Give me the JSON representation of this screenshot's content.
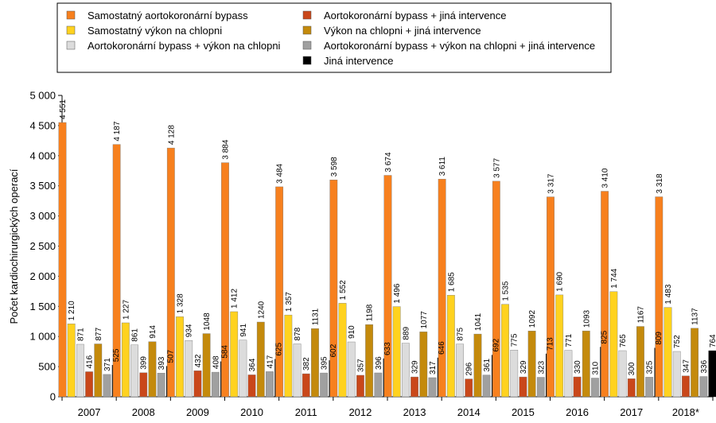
{
  "chart_data": {
    "type": "bar",
    "title": "",
    "xlabel": "",
    "ylabel": "Počet kardiochirurgických operací",
    "ylim": [
      0,
      5000
    ],
    "yticks": [
      "0",
      "500",
      "1 000",
      "1 500",
      "2 000",
      "2 500",
      "3 000",
      "3 500",
      "4 000",
      "4 500",
      "5 000"
    ],
    "grid": false,
    "legend_position": "top",
    "categories": [
      "2007",
      "2008",
      "2009",
      "2010",
      "2011",
      "2012",
      "2013",
      "2014",
      "2015",
      "2016",
      "2017",
      "2018*"
    ],
    "series": [
      {
        "name": "Samostatný aortokoronární bypass",
        "color": "#F7801E",
        "values": [
          4551,
          4187,
          4128,
          3884,
          3484,
          3598,
          3674,
          3611,
          3577,
          3317,
          3410,
          3318
        ],
        "labels": [
          "4 551",
          "4 187",
          "4 128",
          "3 884",
          "3 484",
          "3 598",
          "3 674",
          "3 611",
          "3 577",
          "3 317",
          "3 410",
          "3 318"
        ]
      },
      {
        "name": "Samostatný výkon na chlopni",
        "color": "#FFD21F",
        "values": [
          1210,
          1227,
          1328,
          1412,
          1357,
          1552,
          1496,
          1685,
          1535,
          1690,
          1744,
          1483
        ],
        "labels": [
          "1 210",
          "1 227",
          "1 328",
          "1 412",
          "1 357",
          "1 552",
          "1 496",
          "1 685",
          "1 535",
          "1 690",
          "1 744",
          "1 483"
        ]
      },
      {
        "name": "Aortokoronární bypass + výkon na chlopni",
        "color": "#DCDCDC",
        "values": [
          871,
          861,
          934,
          941,
          878,
          910,
          889,
          875,
          775,
          771,
          765,
          752
        ],
        "labels": [
          "871",
          "861",
          "934",
          "941",
          "878",
          "910",
          "889",
          "875",
          "775",
          "771",
          "765",
          "752"
        ]
      },
      {
        "name": "Aortokoronární bypass + jiná intervence",
        "color": "#C9471A",
        "values": [
          416,
          399,
          432,
          364,
          382,
          357,
          329,
          296,
          329,
          330,
          300,
          347
        ],
        "labels": [
          "416",
          "399",
          "432",
          "364",
          "382",
          "357",
          "329",
          "296",
          "329",
          "330",
          "300",
          "347"
        ]
      },
      {
        "name": "Výkon na chlopni + jiná intervence",
        "color": "#C48A0C",
        "values": [
          877,
          914,
          1048,
          1240,
          1131,
          1198,
          1077,
          1041,
          1092,
          1093,
          1167,
          1137
        ],
        "labels": [
          "877",
          "914",
          "1048",
          "1240",
          "1131",
          "1198",
          "1077",
          "1041",
          "1092",
          "1093",
          "1167",
          "1137"
        ]
      },
      {
        "name": "Aortokoronární bypass + výkon na chlopni + jiná intervence",
        "color": "#A0A0A0",
        "values": [
          371,
          393,
          408,
          417,
          395,
          396,
          317,
          361,
          323,
          310,
          325,
          336
        ],
        "labels": [
          "371",
          "393",
          "408",
          "417",
          "395",
          "396",
          "317",
          "361",
          "323",
          "310",
          "325",
          "336"
        ]
      },
      {
        "name": "Jiná intervence",
        "color": "#000000",
        "values": [
          525,
          507,
          584,
          625,
          602,
          633,
          646,
          692,
          713,
          825,
          809,
          764
        ],
        "labels": [
          "525",
          "507",
          "584",
          "625",
          "602",
          "633",
          "646",
          "692",
          "713",
          "825",
          "809",
          "764"
        ]
      }
    ],
    "legend_order": [
      0,
      3,
      1,
      4,
      2,
      5,
      6
    ]
  }
}
